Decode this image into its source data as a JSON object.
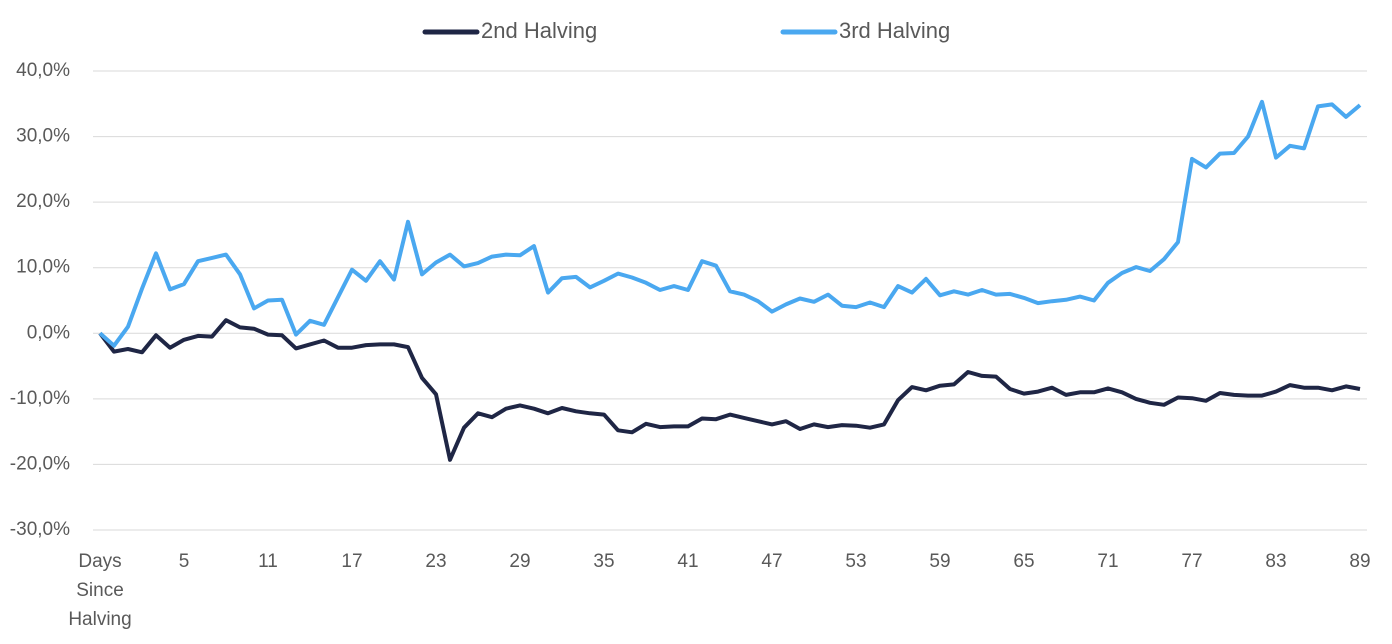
{
  "chart_data": {
    "type": "line",
    "categories": [
      "Days Since Halving",
      null,
      null,
      null,
      null,
      null,
      "5",
      null,
      null,
      null,
      null,
      null,
      "11",
      null,
      null,
      null,
      null,
      null,
      "17",
      null,
      null,
      null,
      null,
      null,
      "23",
      null,
      null,
      null,
      null,
      null,
      "29",
      null,
      null,
      null,
      null,
      null,
      "35",
      null,
      null,
      null,
      null,
      null,
      "41",
      null,
      null,
      null,
      null,
      null,
      "47",
      null,
      null,
      null,
      null,
      null,
      "53",
      null,
      null,
      null,
      null,
      null,
      "59",
      null,
      null,
      null,
      null,
      null,
      "65",
      null,
      null,
      null,
      null,
      null,
      "71",
      null,
      null,
      null,
      null,
      null,
      "77",
      null,
      null,
      null,
      null,
      null,
      "83",
      null,
      null,
      null,
      null,
      null,
      "89"
    ],
    "series": [
      {
        "name": "2nd Halving",
        "color": "#1f2645",
        "values": [
          0,
          -2.8,
          -2.4,
          -2.9,
          -0.3,
          -2.2,
          -1.0,
          -0.4,
          -0.5,
          2.0,
          0.9,
          0.7,
          -0.2,
          -0.3,
          -2.3,
          -1.7,
          -1.1,
          -2.2,
          -2.2,
          -1.8,
          -1.7,
          -1.7,
          -2.1,
          -6.8,
          -9.3,
          -19.3,
          -14.4,
          -12.2,
          -12.8,
          -11.5,
          -11.0,
          -11.5,
          -12.2,
          -11.4,
          -11.9,
          -12.2,
          -12.4,
          -14.8,
          -15.1,
          -13.8,
          -14.3,
          -14.2,
          -14.2,
          -13.0,
          -13.1,
          -12.4,
          -12.9,
          -13.4,
          -13.9,
          -13.4,
          -14.6,
          -13.9,
          -14.3,
          -14.0,
          -14.1,
          -14.4,
          -13.9,
          -10.2,
          -8.2,
          -8.7,
          -8.0,
          -7.8,
          -5.9,
          -6.5,
          -6.6,
          -8.5,
          -9.2,
          -8.9,
          -8.3,
          -9.4,
          -9.0,
          -9.0,
          -8.4,
          -9.0,
          -10.0,
          -10.6,
          -10.9,
          -9.8,
          -9.9,
          -10.3,
          -9.1,
          -9.4,
          -9.5,
          -9.5,
          -8.9,
          -7.9,
          -8.3,
          -8.3,
          -8.7,
          -8.1,
          -8.5
        ]
      },
      {
        "name": "3rd Halving",
        "color": "#4aa8f0",
        "values": [
          0,
          -1.9,
          1.0,
          6.8,
          12.2,
          6.7,
          7.5,
          11.0,
          11.5,
          12.0,
          9.0,
          3.8,
          5.0,
          5.1,
          -0.2,
          1.9,
          1.3,
          5.5,
          9.7,
          8.0,
          11.0,
          8.2,
          17.0,
          9.0,
          10.8,
          12.0,
          10.2,
          10.7,
          11.7,
          12.0,
          11.9,
          13.3,
          6.2,
          8.4,
          8.6,
          7.0,
          8.0,
          9.1,
          8.5,
          7.7,
          6.6,
          7.2,
          6.6,
          11.0,
          10.3,
          6.4,
          5.9,
          4.9,
          3.3,
          4.4,
          5.3,
          4.8,
          5.9,
          4.2,
          4.0,
          4.7,
          4.0,
          7.2,
          6.2,
          8.3,
          5.8,
          6.4,
          5.9,
          6.6,
          5.9,
          6.0,
          5.4,
          4.6,
          4.9,
          5.1,
          5.6,
          5.0,
          7.7,
          9.2,
          10.1,
          9.5,
          11.3,
          13.9,
          26.6,
          25.3,
          27.4,
          27.5,
          30.0,
          35.3,
          26.8,
          28.6,
          28.2,
          34.6,
          34.9,
          33.0,
          34.8
        ]
      }
    ],
    "ylim": [
      -30,
      40
    ],
    "yticks": [
      {
        "value": -30,
        "label": "-30,0%"
      },
      {
        "value": -20,
        "label": "-20,0%"
      },
      {
        "value": -10,
        "label": "-10,0%"
      },
      {
        "value": 0,
        "label": "0,0%"
      },
      {
        "value": 10,
        "label": "10,0%"
      },
      {
        "value": 20,
        "label": "20,0%"
      },
      {
        "value": 30,
        "label": "30,0%"
      },
      {
        "value": 40,
        "label": "40,0%"
      }
    ],
    "grid": true,
    "legend": "top"
  }
}
